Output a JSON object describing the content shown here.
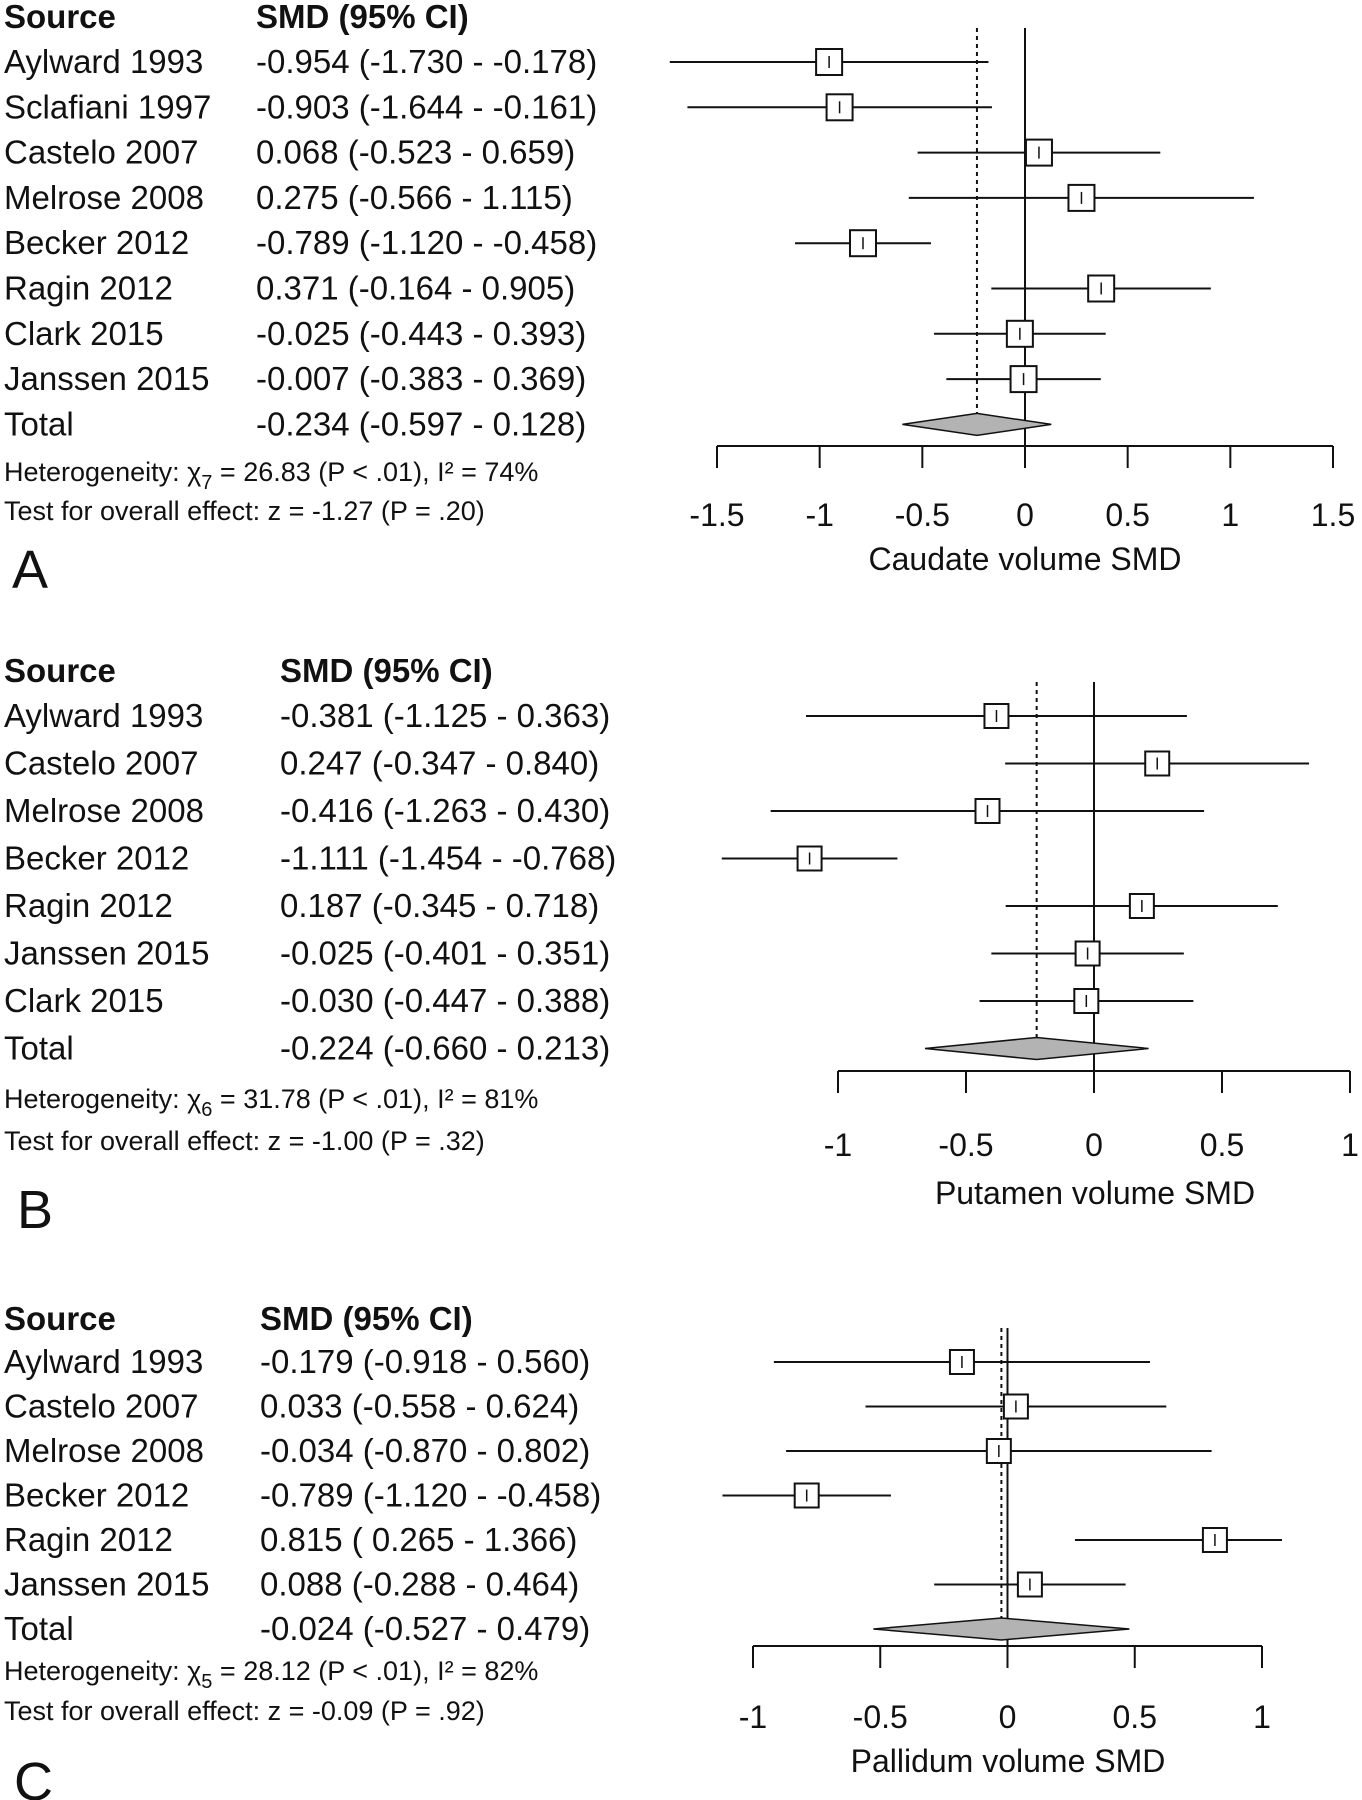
{
  "chart_data": [
    {
      "type": "forest",
      "panel_label": "A",
      "header": {
        "source": "Source",
        "estimate": "SMD (95% CI)"
      },
      "xlabel": "Caudate volume SMD",
      "xlim": [
        -1.5,
        1.5
      ],
      "ticks": [
        "-1.5",
        "-1",
        "-0.5",
        "0",
        "0.5",
        "1",
        "1.5"
      ],
      "studies": [
        {
          "name": "Aylward 1993",
          "smd": -0.954,
          "lower": -1.73,
          "upper": -0.178,
          "ci_text": "-0.954 (-1.730 - -0.178)"
        },
        {
          "name": "Sclafiani 1997",
          "smd": -0.903,
          "lower": -1.644,
          "upper": -0.161,
          "ci_text": "-0.903 (-1.644 - -0.161)"
        },
        {
          "name": "Castelo 2007",
          "smd": 0.068,
          "lower": -0.523,
          "upper": 0.659,
          "ci_text": "0.068 (-0.523 -  0.659)"
        },
        {
          "name": "Melrose 2008",
          "smd": 0.275,
          "lower": -0.566,
          "upper": 1.115,
          "ci_text": "0.275 (-0.566 -  1.115)"
        },
        {
          "name": "Becker 2012",
          "smd": -0.789,
          "lower": -1.12,
          "upper": -0.458,
          "ci_text": "-0.789 (-1.120 - -0.458)"
        },
        {
          "name": "Ragin  2012",
          "smd": 0.371,
          "lower": -0.164,
          "upper": 0.905,
          "ci_text": "0.371 (-0.164 -  0.905)"
        },
        {
          "name": "Clark 2015",
          "smd": -0.025,
          "lower": -0.443,
          "upper": 0.393,
          "ci_text": "-0.025 (-0.443 -  0.393)"
        },
        {
          "name": "Janssen 2015",
          "smd": -0.007,
          "lower": -0.383,
          "upper": 0.369,
          "ci_text": "-0.007 (-0.383 -  0.369)"
        }
      ],
      "total": {
        "name": "Total",
        "smd": -0.234,
        "lower": -0.597,
        "upper": 0.128,
        "ci_text": "-0.234 (-0.597 -  0.128)"
      },
      "heterogeneity": {
        "label": "Heterogeneity: ",
        "df": "7",
        "rest": " = 26.83 (P < .01), I² = 74%"
      },
      "overall_test": "Test for overall effect: z = -1.27 (P = .20)"
    },
    {
      "type": "forest",
      "panel_label": "B",
      "header": {
        "source": "Source",
        "estimate": "SMD (95% CI)"
      },
      "xlabel": "Putamen volume SMD",
      "xlim": [
        -1,
        1
      ],
      "ticks": [
        "-1",
        "-0.5",
        "0",
        "0.5",
        "1"
      ],
      "studies": [
        {
          "name": "Aylward 1993",
          "smd": -0.381,
          "lower": -1.125,
          "upper": 0.363,
          "ci_text": "-0.381 (-1.125 -  0.363)"
        },
        {
          "name": "Castelo 2007",
          "smd": 0.247,
          "lower": -0.347,
          "upper": 0.84,
          "ci_text": "0.247 (-0.347 -  0.840)"
        },
        {
          "name": "Melrose  2008",
          "smd": -0.416,
          "lower": -1.263,
          "upper": 0.43,
          "ci_text": "-0.416 (-1.263 -  0.430)"
        },
        {
          "name": "Becker 2012",
          "smd": -1.111,
          "lower": -1.454,
          "upper": -0.768,
          "ci_text": "-1.111 (-1.454 - -0.768)"
        },
        {
          "name": "Ragin 2012",
          "smd": 0.187,
          "lower": -0.345,
          "upper": 0.718,
          "ci_text": "0.187 (-0.345 -  0.718)"
        },
        {
          "name": "Janssen  2015",
          "smd": -0.025,
          "lower": -0.401,
          "upper": 0.351,
          "ci_text": "-0.025 (-0.401 -  0.351)"
        },
        {
          "name": "Clark 2015",
          "smd": -0.03,
          "lower": -0.447,
          "upper": 0.388,
          "ci_text": "-0.030 (-0.447 -  0.388)"
        }
      ],
      "total": {
        "name": "Total",
        "smd": -0.224,
        "lower": -0.66,
        "upper": 0.213,
        "ci_text": "-0.224 (-0.660 -  0.213)"
      },
      "heterogeneity": {
        "label": "Heterogeneity: ",
        "df": "6",
        "rest": " = 31.78 (P < .01), I² = 81%"
      },
      "overall_test": "Test for overall effect: z = -1.00 (P = .32)"
    },
    {
      "type": "forest",
      "panel_label": "C",
      "header": {
        "source": "Source",
        "estimate": "SMD (95% CI)"
      },
      "xlabel": "Pallidum volume SMD",
      "xlim": [
        -1,
        1
      ],
      "ticks": [
        "-1",
        "-0.5",
        "0",
        "0.5",
        "1"
      ],
      "studies": [
        {
          "name": "Aylward 1993",
          "smd": -0.179,
          "lower": -0.918,
          "upper": 0.56,
          "ci_text": "-0.179 (-0.918 -  0.560)"
        },
        {
          "name": "Castelo 2007",
          "smd": 0.033,
          "lower": -0.558,
          "upper": 0.624,
          "ci_text": "0.033 (-0.558 -  0.624)"
        },
        {
          "name": "Melrose  2008",
          "smd": -0.034,
          "lower": -0.87,
          "upper": 0.802,
          "ci_text": "-0.034 (-0.870 -  0.802)"
        },
        {
          "name": "Becker 2012",
          "smd": -0.789,
          "lower": -1.12,
          "upper": -0.458,
          "ci_text": "-0.789 (-1.120 - -0.458)"
        },
        {
          "name": "Ragin 2012",
          "smd": 0.815,
          "lower": 0.265,
          "upper": 1.366,
          "ci_text": "0.815 ( 0.265 -  1.366)"
        },
        {
          "name": "Janssen  2015",
          "smd": 0.088,
          "lower": -0.288,
          "upper": 0.464,
          "ci_text": "0.088 (-0.288 -  0.464)"
        }
      ],
      "total": {
        "name": "Total",
        "smd": -0.024,
        "lower": -0.527,
        "upper": 0.479,
        "ci_text": "-0.024 (-0.527 -  0.479)"
      },
      "heterogeneity": {
        "label": "Heterogeneity: ",
        "df": "5",
        "rest": " = 28.12 (P < .01), I² = 82%"
      },
      "overall_test": "Test for overall effect: z = -0.09 (P = .92)"
    }
  ],
  "colors": {
    "ink": "#111111",
    "diamond_fill": "#b3b3b3",
    "box_fill": "#ffffff",
    "background": "#ffffff"
  }
}
